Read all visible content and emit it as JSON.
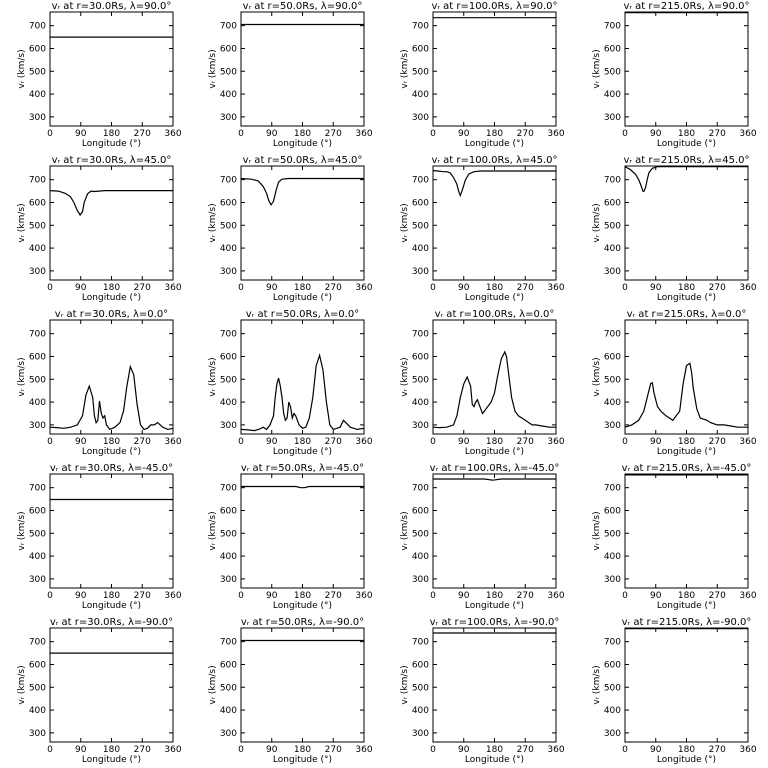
{
  "figure": {
    "xlabel": "Longitude (°)",
    "ylabel": "vᵣ (km/s)",
    "xticks": [
      0,
      90,
      180,
      270,
      360
    ],
    "yticks": [
      300,
      400,
      500,
      600,
      700
    ],
    "xlim": [
      0,
      360
    ],
    "ylim": [
      260,
      760
    ]
  },
  "chart_data": [
    {
      "type": "line",
      "title": "vᵣ at r=30.0Rs, λ=90.0°",
      "x": [
        0,
        360
      ],
      "y": [
        650,
        650
      ]
    },
    {
      "type": "line",
      "title": "vᵣ at r=50.0Rs, λ=90.0°",
      "x": [
        0,
        360
      ],
      "y": [
        705,
        705
      ]
    },
    {
      "type": "line",
      "title": "vᵣ at r=100.0Rs, λ=90.0°",
      "x": [
        0,
        360
      ],
      "y": [
        735,
        735
      ]
    },
    {
      "type": "line",
      "title": "vᵣ at r=215.0Rs, λ=90.0°",
      "x": [
        0,
        360
      ],
      "y": [
        757,
        757
      ]
    },
    {
      "type": "line",
      "title": "vᵣ at r=30.0Rs, λ=45.0°",
      "x": [
        0,
        25,
        45,
        60,
        70,
        80,
        88,
        95,
        100,
        110,
        120,
        130,
        160,
        360
      ],
      "y": [
        652,
        650,
        640,
        625,
        600,
        565,
        545,
        560,
        600,
        638,
        650,
        648,
        652,
        652
      ]
    },
    {
      "type": "line",
      "title": "vᵣ at r=50.0Rs, λ=45.0°",
      "x": [
        0,
        30,
        50,
        65,
        75,
        82,
        88,
        95,
        102,
        110,
        120,
        140,
        360
      ],
      "y": [
        705,
        702,
        695,
        670,
        640,
        605,
        590,
        605,
        650,
        690,
        702,
        705,
        705
      ]
    },
    {
      "type": "line",
      "title": "vᵣ at r=100.0Rs, λ=45.0°",
      "x": [
        0,
        15,
        30,
        40,
        50,
        60,
        70,
        75,
        80,
        85,
        95,
        105,
        120,
        140,
        360
      ],
      "y": [
        740,
        738,
        735,
        735,
        730,
        710,
        680,
        650,
        630,
        650,
        700,
        725,
        735,
        738,
        738
      ]
    },
    {
      "type": "line",
      "title": "vᵣ at r=215.0Rs, λ=45.0°",
      "x": [
        0,
        15,
        30,
        40,
        48,
        52,
        55,
        60,
        65,
        70,
        80,
        95,
        360
      ],
      "y": [
        757,
        745,
        725,
        700,
        670,
        650,
        648,
        665,
        700,
        730,
        750,
        757,
        757
      ]
    },
    {
      "type": "line",
      "title": "vᵣ at r=30.0Rs, λ=0.0°",
      "x": [
        0,
        20,
        40,
        60,
        80,
        95,
        105,
        115,
        125,
        130,
        135,
        140,
        145,
        150,
        155,
        160,
        165,
        175,
        190,
        205,
        215,
        225,
        235,
        245,
        255,
        265,
        275,
        285,
        295,
        305,
        315,
        330,
        345,
        360
      ],
      "y": [
        290,
        288,
        285,
        290,
        300,
        340,
        430,
        470,
        420,
        340,
        310,
        320,
        405,
        350,
        330,
        340,
        300,
        280,
        290,
        310,
        360,
        470,
        555,
        520,
        390,
        300,
        280,
        285,
        300,
        300,
        310,
        290,
        280,
        285
      ]
    },
    {
      "type": "line",
      "title": "vᵣ at r=50.0Rs, λ=0.0°",
      "x": [
        0,
        20,
        40,
        55,
        65,
        75,
        85,
        95,
        100,
        105,
        110,
        115,
        120,
        125,
        130,
        135,
        140,
        145,
        150,
        155,
        160,
        170,
        180,
        190,
        200,
        210,
        220,
        230,
        240,
        250,
        260,
        270,
        280,
        290,
        300,
        320,
        340,
        360
      ],
      "y": [
        280,
        278,
        275,
        282,
        290,
        280,
        300,
        340,
        420,
        480,
        505,
        470,
        420,
        350,
        320,
        330,
        400,
        380,
        330,
        350,
        340,
        300,
        285,
        290,
        330,
        420,
        560,
        605,
        540,
        400,
        300,
        280,
        285,
        290,
        320,
        290,
        280,
        285
      ]
    },
    {
      "type": "line",
      "title": "vᵣ at r=100.0Rs, λ=0.0°",
      "x": [
        0,
        20,
        40,
        60,
        70,
        80,
        90,
        100,
        110,
        115,
        120,
        125,
        130,
        135,
        140,
        145,
        150,
        160,
        170,
        180,
        190,
        200,
        210,
        215,
        220,
        230,
        240,
        250,
        260,
        270,
        280,
        290,
        300,
        320,
        340,
        360
      ],
      "y": [
        290,
        288,
        290,
        300,
        340,
        420,
        480,
        510,
        470,
        390,
        380,
        400,
        410,
        390,
        370,
        350,
        360,
        380,
        400,
        440,
        520,
        590,
        620,
        600,
        540,
        420,
        360,
        340,
        330,
        320,
        310,
        300,
        300,
        295,
        290,
        290
      ]
    },
    {
      "type": "line",
      "title": "vᵣ at r=215.0Rs, λ=0.0°",
      "x": [
        0,
        20,
        40,
        55,
        65,
        75,
        80,
        85,
        95,
        105,
        120,
        140,
        160,
        170,
        180,
        190,
        195,
        200,
        210,
        220,
        230,
        240,
        250,
        270,
        290,
        310,
        330,
        360
      ],
      "y": [
        290,
        300,
        320,
        360,
        420,
        480,
        485,
        440,
        380,
        360,
        340,
        320,
        360,
        480,
        560,
        570,
        530,
        460,
        370,
        330,
        325,
        320,
        310,
        300,
        300,
        295,
        290,
        290
      ]
    },
    {
      "type": "line",
      "title": "vᵣ at r=30.0Rs, λ=-45.0°",
      "x": [
        0,
        360
      ],
      "y": [
        648,
        648
      ]
    },
    {
      "type": "line",
      "title": "vᵣ at r=50.0Rs, λ=-45.0°",
      "x": [
        0,
        160,
        175,
        185,
        200,
        360
      ],
      "y": [
        705,
        705,
        700,
        700,
        705,
        705
      ]
    },
    {
      "type": "line",
      "title": "vᵣ at r=100.0Rs, λ=-45.0°",
      "x": [
        0,
        150,
        175,
        200,
        360
      ],
      "y": [
        738,
        738,
        733,
        738,
        738
      ]
    },
    {
      "type": "line",
      "title": "vᵣ at r=215.0Rs, λ=-45.0°",
      "x": [
        0,
        360
      ],
      "y": [
        756,
        756
      ]
    },
    {
      "type": "line",
      "title": "vᵣ at r=30.0Rs, λ=-90.0°",
      "x": [
        0,
        360
      ],
      "y": [
        650,
        650
      ]
    },
    {
      "type": "line",
      "title": "vᵣ at r=50.0Rs, λ=-90.0°",
      "x": [
        0,
        360
      ],
      "y": [
        705,
        705
      ]
    },
    {
      "type": "line",
      "title": "vᵣ at r=100.0Rs, λ=-90.0°",
      "x": [
        0,
        360
      ],
      "y": [
        738,
        738
      ]
    },
    {
      "type": "line",
      "title": "vᵣ at r=215.0Rs, λ=-90.0°",
      "x": [
        0,
        360
      ],
      "y": [
        757,
        757
      ]
    }
  ]
}
